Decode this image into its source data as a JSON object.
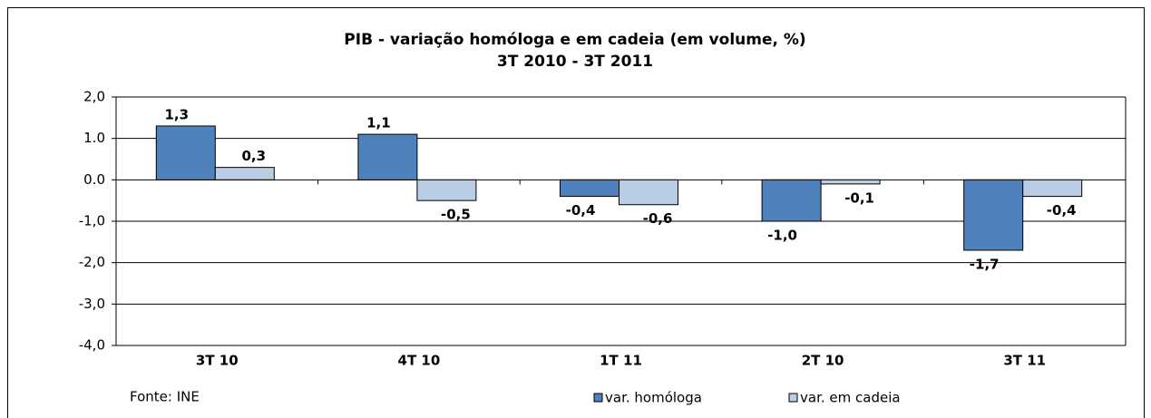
{
  "chart_data": {
    "type": "bar",
    "title": "PIB  - variação homóloga e em cadeia (em volume, %)",
    "subtitle": "3T 2010 - 3T 2011",
    "categories": [
      "3T 10",
      "4T 10",
      "1T 11",
      "2T 10",
      "3T 11"
    ],
    "series": [
      {
        "name": "var. homóloga",
        "color": "#4f81bd",
        "values": [
          1.3,
          1.1,
          -0.4,
          -1.0,
          -1.7
        ],
        "value_labels": [
          "1,3",
          "1,1",
          "-0,4",
          "-1,0",
          "-1,7"
        ]
      },
      {
        "name": "var. em cadeia",
        "color": "#b9cde5",
        "values": [
          0.3,
          -0.5,
          -0.6,
          -0.1,
          -0.4
        ],
        "value_labels": [
          "0,3",
          "-0,5",
          "-0,6",
          "-0,1",
          "-0,4"
        ]
      }
    ],
    "ylim": [
      -4,
      2
    ],
    "yticks": [
      {
        "value": 2,
        "label": "2,0"
      },
      {
        "value": 1,
        "label": "1.0"
      },
      {
        "value": 0,
        "label": "0.0"
      },
      {
        "value": -1,
        "label": "-1,0"
      },
      {
        "value": -2,
        "label": "-2,0"
      },
      {
        "value": -3,
        "label": "-3,0"
      },
      {
        "value": -4,
        "label": "-4,0"
      }
    ],
    "grid": true,
    "legend": "bottom",
    "source": "Fonte: INE"
  }
}
